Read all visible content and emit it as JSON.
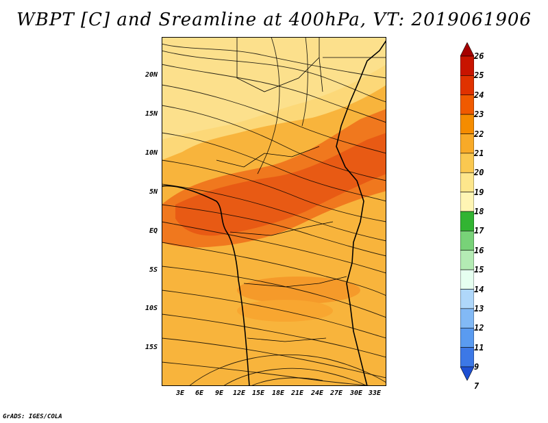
{
  "title": "WBPT [C] and Sreamline at 400hPa, VT: 2019061906",
  "credit": "GrADS: IGES/COLA",
  "lat_labels": [
    "20N",
    "15N",
    "10N",
    "5N",
    "EQ",
    "5S",
    "10S",
    "15S"
  ],
  "lon_labels": [
    "3E",
    "6E",
    "9E",
    "12E",
    "15E",
    "18E",
    "21E",
    "24E",
    "27E",
    "30E",
    "33E"
  ],
  "colorbar": {
    "labels": [
      "26",
      "25",
      "24",
      "23",
      "22",
      "21",
      "20",
      "19",
      "18",
      "17",
      "16",
      "15",
      "14",
      "13",
      "12",
      "11",
      "9",
      "7"
    ],
    "colors": [
      "#a50000",
      "#c81400",
      "#e03200",
      "#f05a00",
      "#f58c00",
      "#f8aa28",
      "#fac850",
      "#fde68c",
      "#fff5b4",
      "#32b432",
      "#78d278",
      "#b4ebb4",
      "#e6fff0",
      "#afd7fa",
      "#82b9f5",
      "#5a9bf0",
      "#3c78e6",
      "#1e50d2"
    ]
  }
}
